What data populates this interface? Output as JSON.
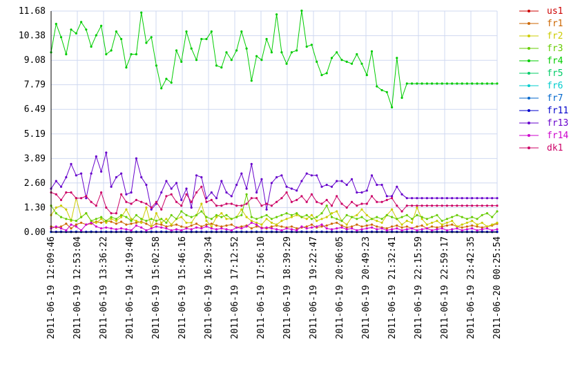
{
  "chart_data": {
    "type": "line",
    "title": "",
    "xlabel": "",
    "ylabel": "",
    "ylim": [
      0,
      11.68
    ],
    "grid": true,
    "legend_position": "right",
    "y_ticks": [
      "0.00",
      "1.30",
      "2.60",
      "3.89",
      "5.19",
      "6.49",
      "7.79",
      "9.08",
      "10.38",
      "11.68"
    ],
    "x_ticks": [
      "2011-06-19 12:09:46",
      "2011-06-19 12:53:04",
      "2011-06-19 13:36:22",
      "2011-06-19 14:19:40",
      "2011-06-19 15:02:58",
      "2011-06-19 15:46:16",
      "2011-06-19 16:29:34",
      "2011-06-19 17:12:52",
      "2011-06-19 17:56:10",
      "2011-06-19 18:39:29",
      "2011-06-19 19:22:47",
      "2011-06-19 20:06:05",
      "2011-06-19 20:49:23",
      "2011-06-19 21:32:41",
      "2011-06-19 22:15:59",
      "2011-06-19 22:59:17",
      "2011-06-19 23:42:35",
      "2011-06-20 00:25:54"
    ],
    "x_start": "2011-06-19 12:09:46",
    "x_end": "2011-06-20 00:25:54",
    "series": [
      {
        "name": "us1",
        "color": "#cc0000",
        "values": [
          0.02,
          0.01,
          0.01,
          0.02,
          0.01,
          0.01,
          0.02,
          0.01,
          0.01,
          0.01,
          0.02,
          0.01,
          0.01,
          0.01,
          0.02,
          0.01,
          0.01,
          0.01,
          0.02,
          0.01,
          0.01,
          0.01,
          0.02,
          0.01,
          0.01,
          0.01,
          0.02,
          0.01,
          0.01,
          0.01,
          0.02,
          0.01,
          0.01,
          0.01,
          0.02,
          0.01,
          0.01,
          0.01,
          0.02,
          0.01,
          0.01,
          0.01,
          0.02,
          0.01,
          0.01,
          0.01,
          0.02,
          0.01,
          0.01,
          0.01,
          0.02,
          0.01,
          0.01,
          0.01,
          0.02,
          0.01,
          0.01,
          0.01,
          0.02,
          0.01,
          0.01,
          0.01,
          0.02,
          0.01,
          0.01,
          0.01,
          0.02,
          0.01,
          0.01,
          0.01,
          0.02,
          0.01,
          0.01,
          0.01,
          0.02,
          0.01,
          0.01,
          0.01,
          0.02,
          0.01,
          0.01,
          0.01,
          0.02,
          0.01,
          0.01,
          0.01,
          0.02,
          0.01,
          0.01,
          0.01
        ]
      },
      {
        "name": "fr1",
        "color": "#cc6600",
        "values": [
          0.3,
          0.25,
          0.3,
          0.45,
          0.2,
          0.4,
          0.5,
          0.4,
          0.45,
          0.55,
          0.5,
          0.6,
          0.55,
          0.45,
          0.55,
          0.4,
          0.45,
          0.5,
          0.55,
          0.45,
          0.3,
          0.45,
          0.4,
          0.3,
          0.35,
          0.4,
          0.3,
          0.25,
          0.35,
          0.45,
          0.3,
          0.4,
          0.45,
          0.35,
          0.3,
          0.35,
          0.4,
          0.25,
          0.3,
          0.35,
          0.2,
          0.3,
          0.25,
          0.2,
          0.3,
          0.35,
          0.3,
          0.25,
          0.3,
          0.2,
          0.25,
          0.3,
          0.4,
          0.25,
          0.3,
          0.35,
          0.45,
          0.5,
          0.35,
          0.25,
          0.3,
          0.4,
          0.3,
          0.35,
          0.4,
          0.3,
          0.25,
          0.2,
          0.3,
          0.35,
          0.25,
          0.3,
          0.2,
          0.3,
          0.35,
          0.2,
          0.3,
          0.25,
          0.3,
          0.35,
          0.4,
          0.3,
          0.25,
          0.3,
          0.35,
          0.3,
          0.25,
          0.3,
          0.35,
          0.45
        ]
      },
      {
        "name": "fr2",
        "color": "#cccc00",
        "values": [
          0.9,
          1.3,
          1.4,
          1.2,
          0.6,
          1.8,
          0.8,
          1.0,
          0.6,
          0.5,
          0.7,
          0.5,
          0.7,
          0.6,
          0.8,
          1.2,
          0.7,
          0.6,
          0.5,
          1.3,
          0.3,
          1.0,
          0.5,
          0.7,
          0.4,
          0.7,
          0.8,
          0.5,
          0.5,
          0.9,
          1.5,
          0.6,
          0.3,
          0.8,
          1.0,
          0.7,
          0.7,
          0.8,
          1.2,
          0.8,
          0.6,
          0.5,
          0.4,
          0.7,
          0.5,
          0.4,
          0.6,
          0.7,
          0.8,
          0.9,
          0.8,
          0.7,
          0.9,
          0.6,
          0.7,
          0.8,
          1.0,
          1.1,
          0.6,
          0.4,
          0.8,
          0.9,
          1.2,
          0.9,
          0.7,
          0.6,
          0.5,
          0.9,
          1.2,
          0.7,
          0.4,
          0.6,
          0.5,
          1.3,
          0.7,
          0.4,
          0.5,
          0.6,
          0.4,
          0.5,
          0.6,
          0.3,
          0.4,
          0.5,
          0.6,
          0.4,
          0.5,
          0.3,
          0.4,
          0.5
        ]
      },
      {
        "name": "fr3",
        "color": "#66cc00",
        "values": [
          1.4,
          1.0,
          0.8,
          0.7,
          0.65,
          0.6,
          0.8,
          1.0,
          0.6,
          0.7,
          0.8,
          0.6,
          0.8,
          0.7,
          0.9,
          0.8,
          0.6,
          0.9,
          0.7,
          0.6,
          0.7,
          0.6,
          0.7,
          0.5,
          0.9,
          0.7,
          1.1,
          0.9,
          0.8,
          0.9,
          1.1,
          0.8,
          0.7,
          0.9,
          0.8,
          0.9,
          0.7,
          0.8,
          0.9,
          2.0,
          0.8,
          0.7,
          0.8,
          0.9,
          0.7,
          0.8,
          0.9,
          1.0,
          0.9,
          1.0,
          0.8,
          0.9,
          0.7,
          0.8,
          1.0,
          1.4,
          0.8,
          0.7,
          0.6,
          0.9,
          0.8,
          0.7,
          0.8,
          0.6,
          0.7,
          0.8,
          0.7,
          0.9,
          0.8,
          0.7,
          0.8,
          0.9,
          0.7,
          0.9,
          0.8,
          0.7,
          0.8,
          0.9,
          0.6,
          0.7,
          0.8,
          0.9,
          0.8,
          0.7,
          0.8,
          0.7,
          0.9,
          1.0,
          0.8,
          1.1
        ]
      },
      {
        "name": "fr4",
        "color": "#00cc00",
        "values": [
          9.5,
          11.0,
          10.3,
          9.4,
          10.7,
          10.5,
          11.1,
          10.7,
          9.8,
          10.4,
          10.9,
          9.4,
          9.6,
          10.6,
          10.2,
          8.7,
          9.4,
          9.4,
          11.6,
          10.0,
          10.3,
          8.8,
          7.6,
          8.1,
          7.9,
          9.6,
          9.0,
          10.6,
          9.7,
          9.1,
          10.2,
          10.2,
          10.6,
          8.8,
          8.7,
          9.5,
          9.1,
          9.6,
          10.6,
          9.7,
          8.0,
          9.3,
          9.1,
          10.2,
          9.5,
          11.5,
          9.5,
          8.9,
          9.5,
          9.6,
          11.7,
          9.8,
          9.9,
          9.0,
          8.3,
          8.4,
          9.2,
          9.5,
          9.1,
          9.0,
          8.9,
          9.4,
          8.9,
          8.3,
          9.55,
          7.7,
          7.5,
          7.4,
          6.6,
          9.2,
          7.1,
          7.85,
          7.85,
          7.85,
          7.85,
          7.85,
          7.85,
          7.85,
          7.85,
          7.85,
          7.85,
          7.85,
          7.85,
          7.85,
          7.85,
          7.85,
          7.85,
          7.85,
          7.85,
          7.85
        ]
      },
      {
        "name": "fr5",
        "color": "#00cc66",
        "values": [
          0.02,
          0.02,
          0.03,
          0.02,
          0.02,
          0.03,
          0.02,
          0.02,
          0.03,
          0.02,
          0.02,
          0.03,
          0.02,
          0.02,
          0.03,
          0.02,
          0.02,
          0.03,
          0.02,
          0.02,
          0.03,
          0.02,
          0.02,
          0.03,
          0.02,
          0.02,
          0.03,
          0.02,
          0.02,
          0.03,
          0.02,
          0.02,
          0.03,
          0.02,
          0.02,
          0.03,
          0.02,
          0.02,
          0.03,
          0.02,
          0.02,
          0.03,
          0.02,
          0.02,
          0.03,
          0.02,
          0.02,
          0.03,
          0.02,
          0.02,
          0.03,
          0.02,
          0.02,
          0.03,
          0.02,
          0.02,
          0.03,
          0.02,
          0.02,
          0.03,
          0.02,
          0.02,
          0.03,
          0.02,
          0.02,
          0.03,
          0.02,
          0.02,
          0.03,
          0.02,
          0.02,
          0.03,
          0.02,
          0.02,
          0.03,
          0.02,
          0.02,
          0.03,
          0.02,
          0.02,
          0.03,
          0.02,
          0.02,
          0.03,
          0.02,
          0.02,
          0.03,
          0.02,
          0.02,
          0.03
        ]
      },
      {
        "name": "fr6",
        "color": "#00cccc",
        "values": [
          0.01,
          0.01,
          0.01,
          0.01,
          0.01,
          0.01,
          0.01,
          0.01,
          0.01,
          0.01,
          0.01,
          0.01,
          0.01,
          0.01,
          0.01,
          0.01,
          0.01,
          0.01,
          0.01,
          0.01,
          0.01,
          0.01,
          0.01,
          0.01,
          0.01,
          0.01,
          0.01,
          0.01,
          0.01,
          0.01,
          0.01,
          0.01,
          0.01,
          0.01,
          0.01,
          0.01,
          0.01,
          0.01,
          0.01,
          0.01,
          0.01,
          0.01,
          0.01,
          0.01,
          0.01,
          0.01,
          0.01,
          0.01,
          0.01,
          0.01,
          0.01,
          0.01,
          0.01,
          0.01,
          0.01,
          0.01,
          0.01,
          0.01,
          0.01,
          0.01,
          0.01,
          0.01,
          0.01,
          0.01,
          0.01,
          0.01,
          0.01,
          0.01,
          0.01,
          0.01,
          0.01,
          0.01,
          0.01,
          0.01,
          0.01,
          0.01,
          0.01,
          0.01,
          0.01,
          0.01,
          0.01,
          0.01,
          0.01,
          0.01,
          0.01,
          0.01,
          0.01,
          0.01,
          0.01,
          0.01
        ]
      },
      {
        "name": "fr7",
        "color": "#0066cc",
        "values": [
          0.02,
          0.02,
          0.02,
          0.02,
          0.02,
          0.02,
          0.02,
          0.02,
          0.02,
          0.02,
          0.02,
          0.02,
          0.02,
          0.02,
          0.02,
          0.02,
          0.02,
          0.02,
          0.02,
          0.02,
          0.02,
          0.02,
          0.02,
          0.02,
          0.02,
          0.02,
          0.02,
          0.02,
          0.02,
          0.02,
          0.02,
          0.02,
          0.02,
          0.02,
          0.02,
          0.02,
          0.02,
          0.02,
          0.02,
          0.02,
          0.02,
          0.02,
          0.02,
          0.02,
          0.02,
          0.02,
          0.02,
          0.02,
          0.02,
          0.02,
          0.02,
          0.02,
          0.02,
          0.02,
          0.02,
          0.02,
          0.02,
          0.02,
          0.02,
          0.02,
          0.02,
          0.02,
          0.02,
          0.02,
          0.02,
          0.02,
          0.02,
          0.02,
          0.02,
          0.02,
          0.02,
          0.02,
          0.02,
          0.02,
          0.02,
          0.02,
          0.02,
          0.02,
          0.02,
          0.02,
          0.02,
          0.02,
          0.02,
          0.02,
          0.02,
          0.02,
          0.02,
          0.02,
          0.02,
          0.02
        ]
      },
      {
        "name": "fr11",
        "color": "#0000cc",
        "values": [
          0.03,
          0.02,
          0.03,
          0.02,
          0.03,
          0.02,
          0.03,
          0.02,
          0.03,
          0.02,
          0.03,
          0.02,
          0.03,
          0.02,
          0.03,
          0.02,
          0.03,
          0.02,
          0.03,
          0.02,
          0.03,
          0.02,
          0.03,
          0.02,
          0.03,
          0.02,
          0.03,
          0.02,
          0.03,
          0.02,
          0.03,
          0.02,
          0.03,
          0.02,
          0.03,
          0.02,
          0.03,
          0.02,
          0.03,
          0.02,
          0.03,
          0.02,
          0.03,
          0.02,
          0.03,
          0.02,
          0.03,
          0.02,
          0.03,
          0.02,
          0.03,
          0.02,
          0.03,
          0.02,
          0.03,
          0.02,
          0.03,
          0.02,
          0.03,
          0.02,
          0.03,
          0.02,
          0.03,
          0.02,
          0.03,
          0.02,
          0.03,
          0.02,
          0.03,
          0.02,
          0.03,
          0.02,
          0.03,
          0.02,
          0.03,
          0.02,
          0.03,
          0.02,
          0.03,
          0.02,
          0.03,
          0.02,
          0.03,
          0.02,
          0.03,
          0.02,
          0.03,
          0.02,
          0.03,
          0.02
        ]
      },
      {
        "name": "fr13",
        "color": "#6600cc",
        "values": [
          2.3,
          2.7,
          2.4,
          2.9,
          3.6,
          3.0,
          3.1,
          1.8,
          3.1,
          4.0,
          3.2,
          4.2,
          2.4,
          2.9,
          3.1,
          2.0,
          2.1,
          3.9,
          2.9,
          2.5,
          1.2,
          1.5,
          2.1,
          2.7,
          2.3,
          2.6,
          1.7,
          2.3,
          1.3,
          3.0,
          2.9,
          1.8,
          2.1,
          1.8,
          2.7,
          2.1,
          1.9,
          2.5,
          3.1,
          2.3,
          3.6,
          2.1,
          2.8,
          1.2,
          2.6,
          2.9,
          3.0,
          2.4,
          2.3,
          2.2,
          2.7,
          3.1,
          3.0,
          3.0,
          2.4,
          2.5,
          2.4,
          2.7,
          2.7,
          2.5,
          2.8,
          2.1,
          2.1,
          2.2,
          3.0,
          2.5,
          2.5,
          1.9,
          1.9,
          2.4,
          2.0,
          1.8,
          1.8,
          1.8,
          1.8,
          1.8,
          1.8,
          1.8,
          1.8,
          1.8,
          1.8,
          1.8,
          1.8,
          1.8,
          1.8,
          1.8,
          1.8,
          1.8,
          1.8,
          1.8
        ]
      },
      {
        "name": "fr14",
        "color": "#cc00cc",
        "values": [
          0.2,
          0.3,
          0.2,
          0.1,
          0.4,
          0.3,
          0.1,
          0.4,
          0.5,
          0.3,
          0.2,
          0.25,
          0.2,
          0.15,
          0.2,
          0.15,
          0.1,
          0.35,
          0.25,
          0.1,
          0.2,
          0.3,
          0.25,
          0.2,
          0.1,
          0.15,
          0.1,
          0.2,
          0.15,
          0.25,
          0.2,
          0.3,
          0.2,
          0.15,
          0.2,
          0.15,
          0.1,
          0.25,
          0.2,
          0.3,
          0.5,
          0.4,
          0.2,
          0.25,
          0.2,
          0.15,
          0.1,
          0.2,
          0.15,
          0.1,
          0.3,
          0.2,
          0.25,
          0.3,
          0.4,
          0.2,
          0.15,
          0.2,
          0.25,
          0.15,
          0.2,
          0.1,
          0.15,
          0.2,
          0.25,
          0.15,
          0.2,
          0.1,
          0.15,
          0.2,
          0.1,
          0.15,
          0.2,
          0.1,
          0.15,
          0.2,
          0.1,
          0.15,
          0.2,
          0.1,
          0.15,
          0.2,
          0.1,
          0.15,
          0.2,
          0.1,
          0.15,
          0.2,
          0.1,
          0.15
        ]
      },
      {
        "name": "dk1",
        "color": "#cc0066",
        "values": [
          2.1,
          2.0,
          1.7,
          2.1,
          2.1,
          1.8,
          1.8,
          1.9,
          1.6,
          1.4,
          2.1,
          1.3,
          1.0,
          1.0,
          2.0,
          1.6,
          1.5,
          1.7,
          1.6,
          1.5,
          1.3,
          1.6,
          1.2,
          1.9,
          2.0,
          1.6,
          1.4,
          2.0,
          1.6,
          2.1,
          2.4,
          1.6,
          1.7,
          1.4,
          1.4,
          1.5,
          1.5,
          1.4,
          1.4,
          1.5,
          1.8,
          1.8,
          1.4,
          1.5,
          1.4,
          1.6,
          1.8,
          2.1,
          1.6,
          1.7,
          1.9,
          1.6,
          2.0,
          1.6,
          1.5,
          1.7,
          1.4,
          1.9,
          1.5,
          1.3,
          1.6,
          1.4,
          1.5,
          1.5,
          1.9,
          1.6,
          1.6,
          1.7,
          1.8,
          1.4,
          1.1,
          1.4,
          1.4,
          1.4,
          1.4,
          1.4,
          1.4,
          1.4,
          1.4,
          1.4,
          1.4,
          1.4,
          1.4,
          1.4,
          1.4,
          1.4,
          1.4,
          1.4,
          1.4,
          1.4
        ]
      }
    ]
  }
}
